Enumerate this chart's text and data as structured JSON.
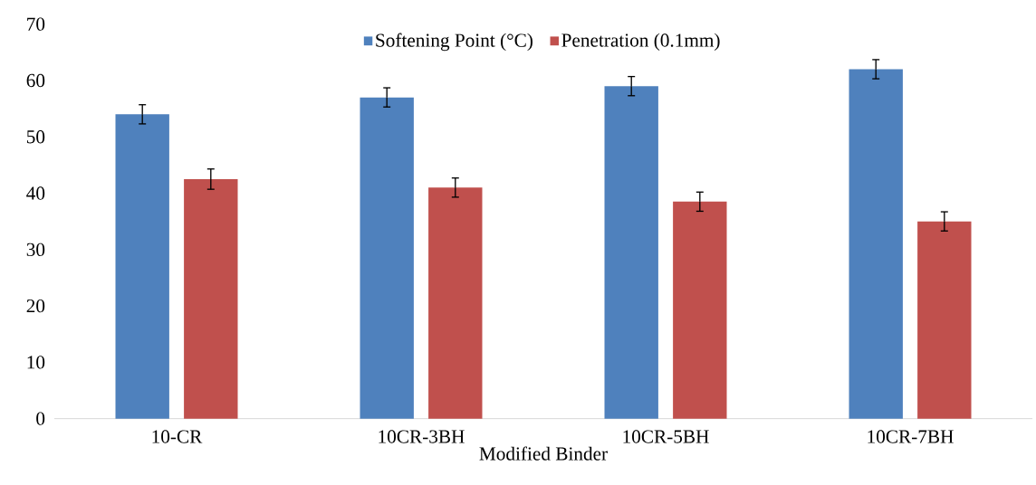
{
  "chart_data": {
    "type": "bar",
    "xlabel": "Modified Binder",
    "categories": [
      "10-CR",
      "10CR-3BH",
      "10CR-5BH",
      "10CR-7BH"
    ],
    "series": [
      {
        "name": "Softening Point (°C)",
        "color": "#4f81bd",
        "values": [
          54,
          57,
          59,
          62
        ],
        "errors": [
          1.7,
          1.7,
          1.7,
          1.7
        ]
      },
      {
        "name": "Penetration (0.1mm)",
        "color": "#c0504d",
        "values": [
          42.5,
          41,
          38.5,
          35
        ],
        "errors": [
          1.8,
          1.7,
          1.7,
          1.7
        ]
      }
    ],
    "ylim": [
      0,
      70
    ],
    "yticks": [
      0,
      10,
      20,
      30,
      40,
      50,
      60,
      70
    ],
    "legend": "top",
    "grid": false
  }
}
